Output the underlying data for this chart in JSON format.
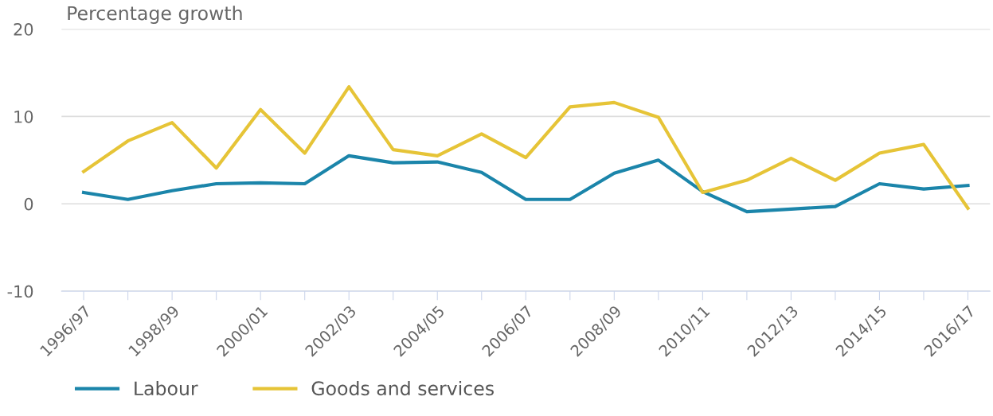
{
  "chart_data": {
    "type": "line",
    "ylabel": "Percentage growth",
    "categories": [
      "1996/97",
      null,
      "1998/99",
      null,
      "2000/01",
      null,
      "2002/03",
      null,
      "2004/05",
      null,
      "2006/07",
      null,
      "2008/09",
      null,
      "2010/11",
      null,
      "2012/13",
      null,
      "2014/15",
      null,
      "2016/17"
    ],
    "series": [
      {
        "name": "Labour",
        "color": "#1b85aa",
        "values": [
          1.3,
          0.5,
          1.5,
          2.3,
          2.4,
          2.3,
          5.5,
          4.7,
          4.8,
          3.6,
          0.5,
          0.5,
          3.5,
          5.0,
          1.4,
          -0.9,
          -0.6,
          -0.3,
          2.3,
          1.7,
          2.1
        ]
      },
      {
        "name": "Goods and services",
        "color": "#e6c437",
        "values": [
          3.7,
          7.2,
          9.3,
          4.1,
          10.8,
          5.8,
          13.4,
          6.2,
          5.5,
          8.0,
          5.3,
          11.1,
          11.6,
          9.9,
          1.3,
          2.7,
          5.2,
          2.7,
          5.8,
          6.8,
          -0.5
        ]
      }
    ],
    "ylim": [
      -10,
      20
    ],
    "yticks": [
      -10,
      0,
      10,
      20
    ],
    "grid": "y",
    "legend": "bottom",
    "marker": "none",
    "line_style": "solid"
  }
}
